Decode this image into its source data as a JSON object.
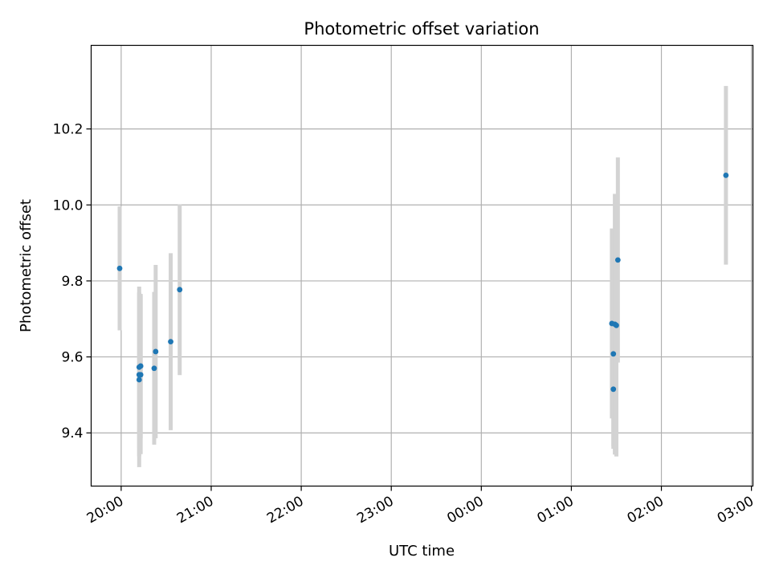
{
  "chart_data": {
    "type": "scatter",
    "title": "Photometric offset variation",
    "xlabel": "UTC time",
    "ylabel": "Photometric offset",
    "grid": true,
    "x_tick_labels": [
      "20:00",
      "21:00",
      "22:00",
      "23:00",
      "00:00",
      "01:00",
      "02:00",
      "03:00"
    ],
    "y_ticks": [
      9.4,
      9.6,
      9.8,
      10.0,
      10.2
    ],
    "y_tick_labels": [
      "9.4",
      "9.6",
      "9.8",
      "10.0",
      "10.2"
    ],
    "xlim": [
      "19:40",
      "03:01"
    ],
    "ylim": [
      9.26,
      10.42
    ],
    "point_color": "#1f77b4",
    "errorbar_color": "#d3d3d3",
    "points": [
      {
        "x": "19:59",
        "y": 9.833,
        "err": 0.163
      },
      {
        "x": "20:12",
        "y": 9.573,
        "err": 0.212
      },
      {
        "x": "20:12",
        "y": 9.553,
        "err": 0.215
      },
      {
        "x": "20:12",
        "y": 9.54,
        "err": 0.23
      },
      {
        "x": "20:13",
        "y": 9.576,
        "err": 0.19
      },
      {
        "x": "20:13",
        "y": 9.553,
        "err": 0.209
      },
      {
        "x": "20:22",
        "y": 9.57,
        "err": 0.201
      },
      {
        "x": "20:23",
        "y": 9.614,
        "err": 0.228
      },
      {
        "x": "20:33",
        "y": 9.64,
        "err": 0.233
      },
      {
        "x": "20:39",
        "y": 9.777,
        "err": 0.225
      },
      {
        "x": "01:27",
        "y": 9.688,
        "err": 0.25
      },
      {
        "x": "01:28",
        "y": 9.608,
        "err": 0.25
      },
      {
        "x": "01:28",
        "y": 9.515,
        "err": 0.15
      },
      {
        "x": "01:29",
        "y": 9.686,
        "err": 0.343
      },
      {
        "x": "01:30",
        "y": 9.683,
        "err": 0.345
      },
      {
        "x": "01:31",
        "y": 9.855,
        "err": 0.27
      },
      {
        "x": "02:43",
        "y": 10.078,
        "err": 0.235
      }
    ]
  }
}
